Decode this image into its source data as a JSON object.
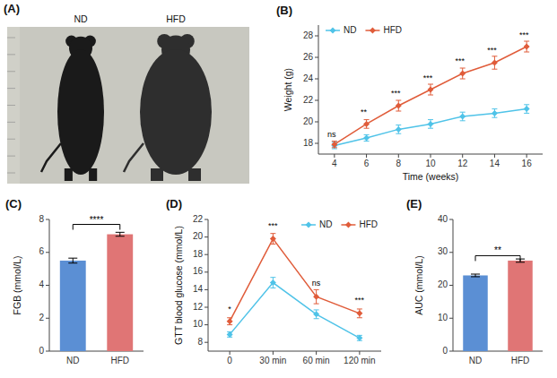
{
  "chart_data": [
    {
      "type": "illustration",
      "title": "(A)",
      "categories": [
        "ND",
        "HFD"
      ]
    },
    {
      "type": "line",
      "title": "(B)",
      "xlabel": "Time (weeks)",
      "ylabel": "Weight (g)",
      "x": [
        4,
        6,
        8,
        10,
        12,
        14,
        16
      ],
      "xlim": [
        3,
        17
      ],
      "xticks": [
        4,
        6,
        8,
        10,
        12,
        14,
        16
      ],
      "ylim": [
        17,
        29
      ],
      "yticks": [
        18,
        20,
        22,
        24,
        26,
        28
      ],
      "legend": "upper left",
      "marker": "diamond",
      "series": [
        {
          "name": "ND",
          "color": "#4FC3E8",
          "values": [
            17.8,
            18.5,
            19.3,
            19.8,
            20.5,
            20.8,
            21.2
          ],
          "errors": [
            0.3,
            0.3,
            0.4,
            0.4,
            0.4,
            0.4,
            0.4
          ]
        },
        {
          "name": "HFD",
          "color": "#E05C3A",
          "values": [
            17.9,
            19.8,
            21.5,
            23.0,
            24.5,
            25.5,
            27.0
          ],
          "errors": [
            0.3,
            0.4,
            0.5,
            0.5,
            0.5,
            0.6,
            0.5
          ]
        }
      ],
      "annotations": [
        {
          "text": "ns",
          "x": 4,
          "y": 18.6
        },
        {
          "text": "**",
          "x": 6,
          "y": 20.7
        },
        {
          "text": "***",
          "x": 8,
          "y": 22.4
        },
        {
          "text": "***",
          "x": 10,
          "y": 23.8
        },
        {
          "text": "***",
          "x": 12,
          "y": 25.4
        },
        {
          "text": "***",
          "x": 14,
          "y": 26.4
        },
        {
          "text": "***",
          "x": 16,
          "y": 27.8
        }
      ]
    },
    {
      "type": "bar",
      "title": "(C)",
      "ylabel": "FGB (mmol/L)",
      "categories": [
        "ND",
        "HFD"
      ],
      "values": [
        5.5,
        7.1
      ],
      "errors": [
        0.15,
        0.12
      ],
      "colors": [
        "#5B8FD4",
        "#E07575"
      ],
      "ylim": [
        0,
        8
      ],
      "yticks": [
        0,
        2,
        4,
        6,
        8
      ],
      "annotations": [
        {
          "text": "****",
          "y": 7.7
        }
      ]
    },
    {
      "type": "line",
      "title": "(D)",
      "ylabel": "GTT blood glucose (mmol/L)",
      "categories": [
        "0",
        "30 min",
        "60 min",
        "120 min"
      ],
      "ylim": [
        7,
        22
      ],
      "yticks": [
        8,
        10,
        12,
        14,
        16,
        18,
        20,
        22
      ],
      "legend": "upper right",
      "marker": "diamond",
      "series": [
        {
          "name": "ND",
          "color": "#4FC3E8",
          "values": [
            8.9,
            14.8,
            11.2,
            8.5
          ],
          "errors": [
            0.3,
            0.6,
            0.5,
            0.3
          ]
        },
        {
          "name": "HFD",
          "color": "#E05C3A",
          "values": [
            10.4,
            19.8,
            13.2,
            11.3
          ],
          "errors": [
            0.4,
            0.6,
            0.8,
            0.5
          ]
        }
      ],
      "annotations": [
        {
          "text": "*",
          "x": "0",
          "y": 11.5
        },
        {
          "text": "***",
          "x": "30 min",
          "y": 21.0
        },
        {
          "text": "ns",
          "x": "60 min",
          "y": 14.5
        },
        {
          "text": "***",
          "x": "120 min",
          "y": 12.5
        }
      ]
    },
    {
      "type": "bar",
      "title": "(E)",
      "ylabel": "AUC (mmol/L)",
      "categories": [
        "ND",
        "HFD"
      ],
      "values": [
        23.0,
        27.5
      ],
      "errors": [
        0.4,
        0.5
      ],
      "colors": [
        "#5B8FD4",
        "#E07575"
      ],
      "ylim": [
        0,
        40
      ],
      "yticks": [
        0,
        10,
        20,
        30,
        40
      ],
      "annotations": [
        {
          "text": "**",
          "y": 29.0
        }
      ]
    }
  ]
}
